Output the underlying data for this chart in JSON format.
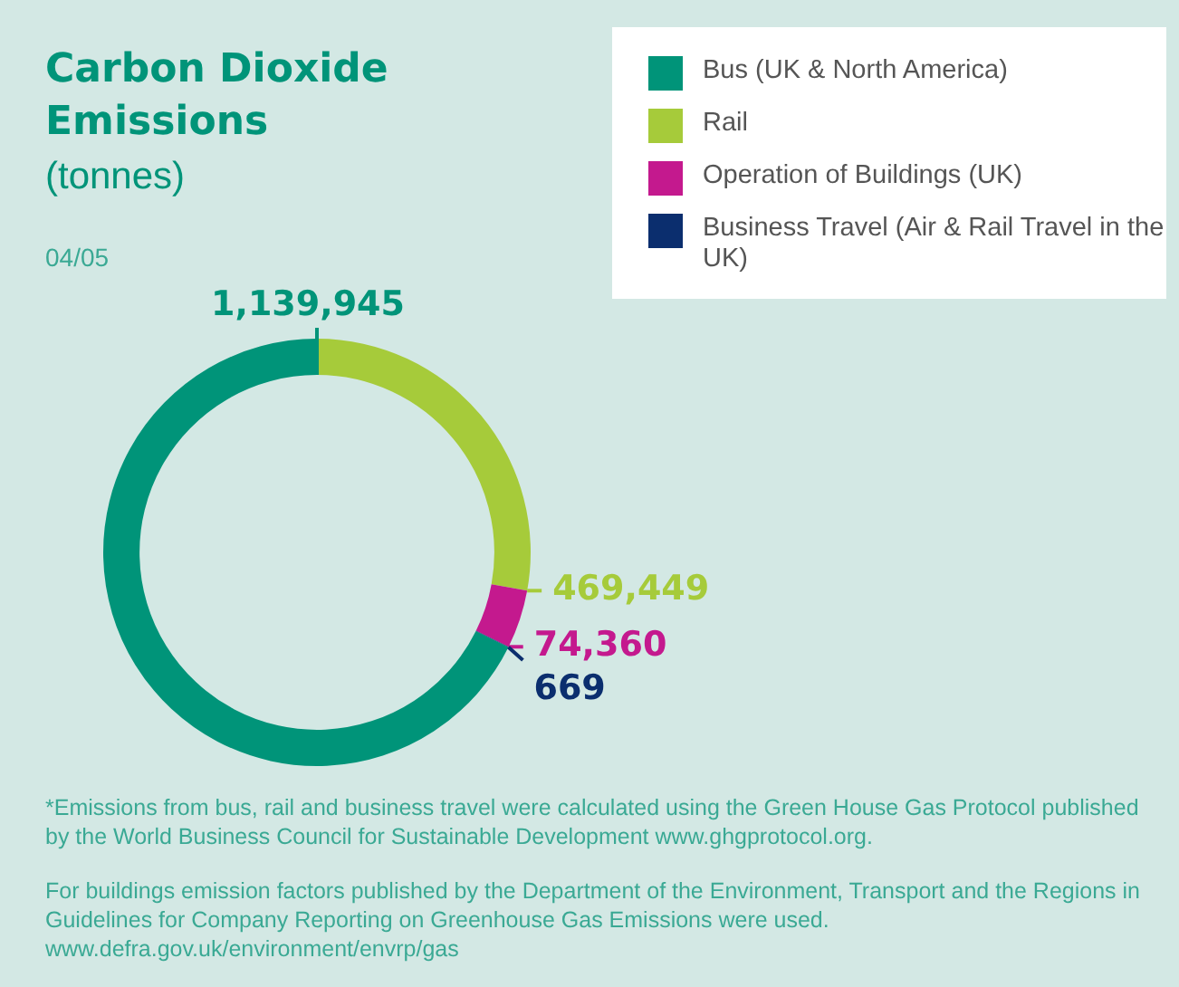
{
  "chart_data": {
    "type": "donut",
    "title": "Carbon Dioxide Emissions",
    "subtitle": "(tonnes)",
    "categories": [
      "Bus (UK & North America)",
      "Rail",
      "Operation of Buildings (UK)",
      "Business Travel (Air & Rail Travel in the UK)"
    ],
    "values": [
      1139945,
      469449,
      74360,
      669
    ],
    "colors": [
      "#009479",
      "#a6cb3a",
      "#c4198e",
      "#0b2e6e"
    ],
    "value_labels": [
      "1,139,945",
      "469,449",
      "74,360",
      "669"
    ],
    "legend": "top right",
    "annotations": [
      "04/05",
      "*Emissions from bus, rail and business travel were calculated using the Green House Gas Protocol published by the World Business Council for Sustainable Development www.ghgprotocol.org.",
      "For buildings emission factors published by the Department of the Environment, Transport and the Regions in Guidelines for Company Reporting on Greenhouse Gas Emissions were used. www.defra.gov.uk/environment/envrp/gas"
    ]
  }
}
